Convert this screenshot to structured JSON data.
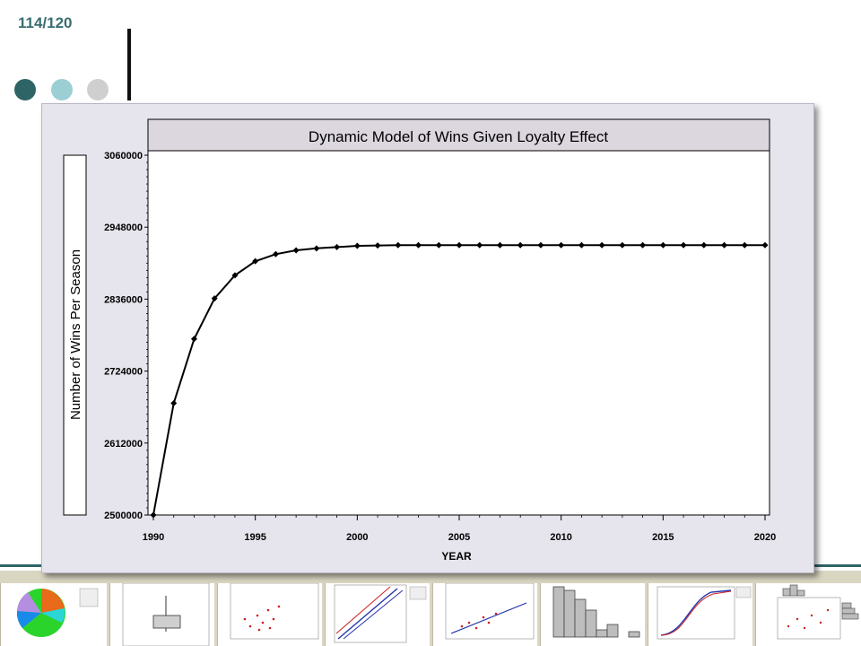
{
  "slide": {
    "page_number": "114/120",
    "accent_colors": [
      "#2e6466",
      "#9ccfd4",
      "#cfcfcf"
    ]
  },
  "chart_data": {
    "type": "line",
    "title": "Dynamic Model of Wins Given Loyalty Effect",
    "xlabel": "YEAR",
    "ylabel": "Number of Wins Per Season",
    "xlim": [
      1990,
      2020
    ],
    "ylim": [
      2500000,
      3060000
    ],
    "x_ticks": [
      1990,
      1995,
      2000,
      2005,
      2010,
      2015,
      2020
    ],
    "x_tick_labels": [
      "1990",
      "1995",
      "2000",
      "2005",
      "2010",
      "2015",
      "2020"
    ],
    "y_ticks": [
      2500000,
      2612000,
      2724000,
      2836000,
      2948000,
      3060000
    ],
    "y_tick_labels": [
      "2500000",
      "2612000",
      "2724000",
      "2836000",
      "2948000",
      "3060000"
    ],
    "grid": false,
    "marker": "diamond",
    "line_color": "#000000",
    "series": [
      {
        "x": [
          1990,
          1991,
          1992,
          1993,
          1994,
          1995,
          1996,
          1997,
          1998,
          1999,
          2000,
          2001,
          2002,
          2003,
          2004,
          2005,
          2006,
          2007,
          2008,
          2009,
          2010,
          2011,
          2012,
          2013,
          2014,
          2015,
          2016,
          2017,
          2018,
          2019,
          2020
        ],
        "values": [
          2500000,
          2674000,
          2774000,
          2837000,
          2873000,
          2895000,
          2906000,
          2912000,
          2915000,
          2917000,
          2919000,
          2919500,
          2920000,
          2920000,
          2920000,
          2920000,
          2920000,
          2920000,
          2920000,
          2920000,
          2920000,
          2920000,
          2920000,
          2920000,
          2920000,
          2920000,
          2920000,
          2920000,
          2920000,
          2920000,
          2920000
        ]
      }
    ]
  }
}
